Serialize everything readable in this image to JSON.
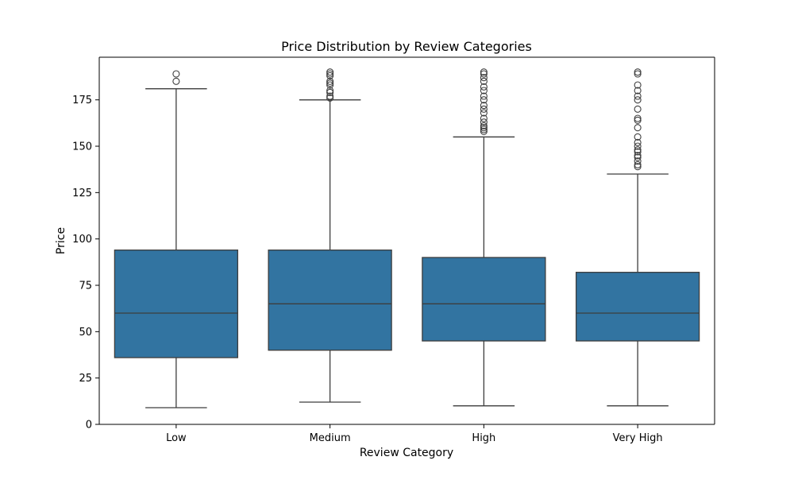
{
  "chart_data": {
    "type": "box",
    "title": "Price Distribution by Review Categories",
    "xlabel": "Review Category",
    "ylabel": "Price",
    "ylim": [
      0,
      198
    ],
    "yticks": [
      0,
      25,
      50,
      75,
      100,
      125,
      150,
      175
    ],
    "grid": false,
    "legend": "none",
    "colors": {
      "box_fill": "#3274a1",
      "line": "#3d3d3d",
      "axis": "#000000"
    },
    "categories": [
      "Low",
      "Medium",
      "High",
      "Very High"
    ],
    "boxes": [
      {
        "category": "Low",
        "whisker_low": 9,
        "q1": 36,
        "median": 60,
        "q3": 94,
        "whisker_high": 181,
        "outliers": [
          185,
          189
        ]
      },
      {
        "category": "Medium",
        "whisker_low": 12,
        "q1": 40,
        "median": 65,
        "q3": 94,
        "whisker_high": 175,
        "outliers": [
          176,
          177,
          179,
          180,
          183,
          184,
          185,
          188,
          189,
          190
        ]
      },
      {
        "category": "High",
        "whisker_low": 10,
        "q1": 45,
        "median": 65,
        "q3": 90,
        "whisker_high": 155,
        "outliers": [
          158,
          159,
          160,
          161,
          163,
          165,
          168,
          170,
          172,
          175,
          177,
          180,
          182,
          185,
          187,
          189,
          190
        ]
      },
      {
        "category": "Very High",
        "whisker_low": 10,
        "q1": 45,
        "median": 60,
        "q3": 82,
        "whisker_high": 135,
        "outliers": [
          139,
          140,
          142,
          144,
          145,
          147,
          148,
          150,
          152,
          155,
          160,
          164,
          165,
          170,
          175,
          177,
          180,
          183,
          189,
          190
        ]
      }
    ]
  }
}
